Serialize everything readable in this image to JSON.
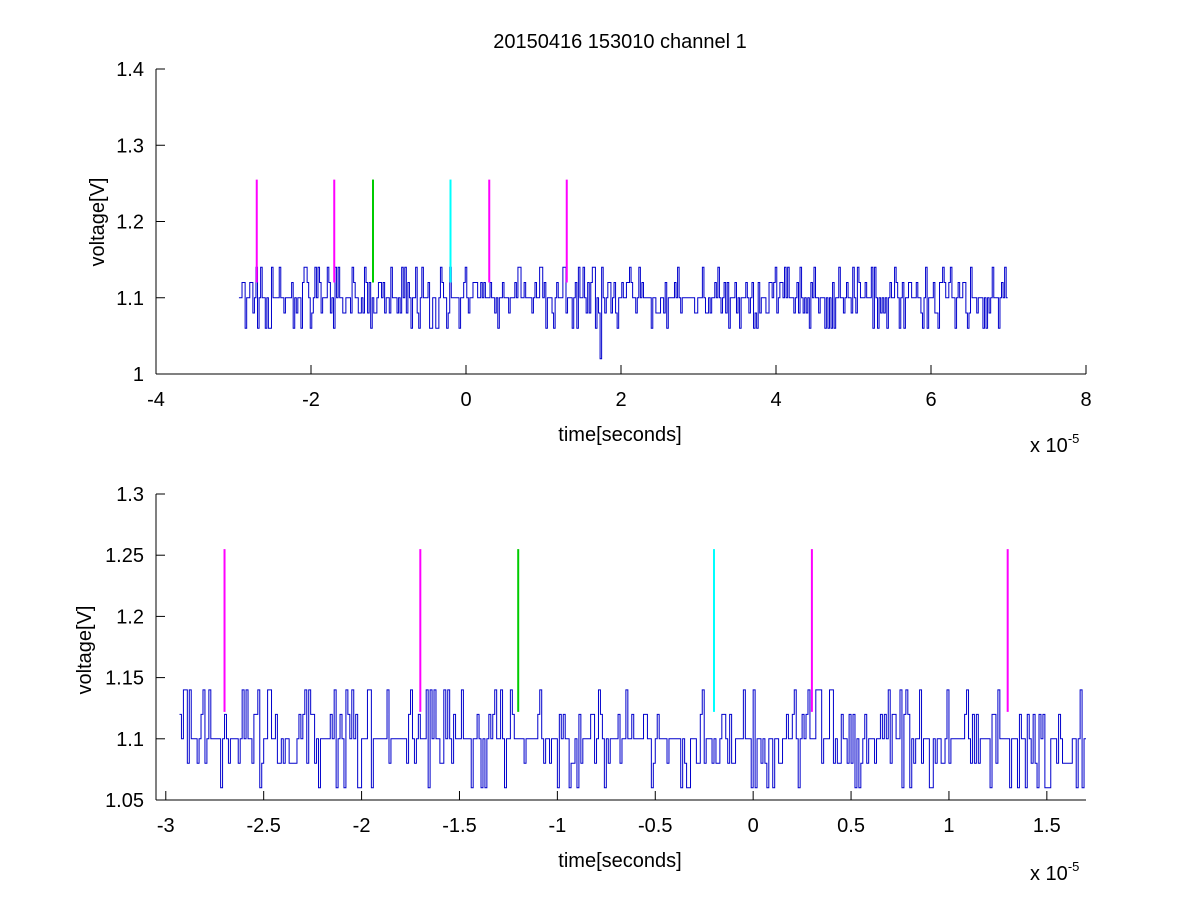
{
  "chart_data": [
    {
      "type": "line",
      "title": "20150416 153010 channel 1",
      "xlabel": "time[seconds]",
      "ylabel": "voltage[V]",
      "x_multiplier": "x 10",
      "x_multiplier_exponent": "-5",
      "xlim": [
        -4,
        8
      ],
      "ylim": [
        1.0,
        1.4
      ],
      "xticks": [
        -4,
        -2,
        0,
        2,
        4,
        6,
        8
      ],
      "yticks": [
        1.0,
        1.1,
        1.2,
        1.3,
        1.4
      ],
      "xtick_labels": [
        "-4",
        "-2",
        "0",
        "2",
        "4",
        "6",
        "8"
      ],
      "ytick_labels": [
        "1",
        "1.1",
        "1.2",
        "1.3",
        "1.4"
      ],
      "grid": false,
      "series": [
        {
          "color": "#0000cc",
          "x_range": [
            -2.93,
            7.0
          ],
          "baseline": 1.1,
          "levels": [
            1.06,
            1.08,
            1.1,
            1.12,
            1.14
          ],
          "dip": {
            "x": 1.73,
            "y": 1.02
          }
        }
      ],
      "markers": [
        {
          "x": -2.7,
          "y0": 1.12,
          "y1": 1.255,
          "color": "#ff00ff"
        },
        {
          "x": -1.7,
          "y0": 1.12,
          "y1": 1.255,
          "color": "#ff00ff"
        },
        {
          "x": -1.2,
          "y0": 1.12,
          "y1": 1.255,
          "color": "#00cc00"
        },
        {
          "x": -0.2,
          "y0": 1.12,
          "y1": 1.255,
          "color": "#00ffff"
        },
        {
          "x": 0.3,
          "y0": 1.12,
          "y1": 1.255,
          "color": "#ff00ff"
        },
        {
          "x": 1.3,
          "y0": 1.12,
          "y1": 1.255,
          "color": "#ff00ff"
        }
      ]
    },
    {
      "type": "line",
      "xlabel": "time[seconds]",
      "ylabel": "voltage[V]",
      "x_multiplier": "x 10",
      "x_multiplier_exponent": "-5",
      "xlim": [
        -3.05,
        1.7
      ],
      "ylim": [
        1.05,
        1.3
      ],
      "xticks": [
        -3,
        -2.5,
        -2,
        -1.5,
        -1,
        -0.5,
        0,
        0.5,
        1,
        1.5
      ],
      "yticks": [
        1.05,
        1.1,
        1.15,
        1.2,
        1.25,
        1.3
      ],
      "xtick_labels": [
        "-3",
        "-2.5",
        "-2",
        "-1.5",
        "-1",
        "-0.5",
        "0",
        "0.5",
        "1",
        "1.5"
      ],
      "ytick_labels": [
        "1.05",
        "1.1",
        "1.15",
        "1.2",
        "1.25",
        "1.3"
      ],
      "grid": false,
      "series": [
        {
          "color": "#0000cc",
          "x_range": [
            -2.93,
            1.7
          ],
          "baseline": 1.1,
          "levels": [
            1.06,
            1.08,
            1.1,
            1.12,
            1.14
          ]
        }
      ],
      "markers": [
        {
          "x": -2.7,
          "y0": 1.122,
          "y1": 1.255,
          "color": "#ff00ff"
        },
        {
          "x": -1.7,
          "y0": 1.122,
          "y1": 1.255,
          "color": "#ff00ff"
        },
        {
          "x": -1.2,
          "y0": 1.122,
          "y1": 1.255,
          "color": "#00cc00"
        },
        {
          "x": -0.2,
          "y0": 1.122,
          "y1": 1.255,
          "color": "#00ffff"
        },
        {
          "x": 0.3,
          "y0": 1.122,
          "y1": 1.255,
          "color": "#ff00ff"
        },
        {
          "x": 1.3,
          "y0": 1.122,
          "y1": 1.255,
          "color": "#ff00ff"
        }
      ]
    }
  ]
}
